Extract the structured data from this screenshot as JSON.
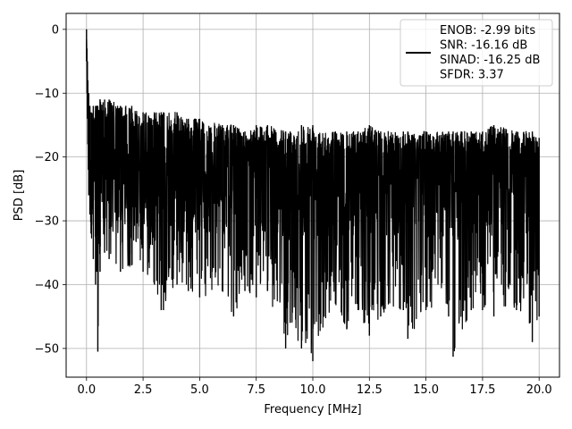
{
  "chart_data": {
    "type": "line",
    "xlabel": "Frequency [MHz]",
    "ylabel": "PSD [dB]",
    "xlim": [
      -0.9,
      20.9
    ],
    "ylim": [
      -54.5,
      2.5
    ],
    "xticks": [
      0.0,
      2.5,
      5.0,
      7.5,
      10.0,
      12.5,
      15.0,
      17.5,
      20.0
    ],
    "xtick_labels": [
      "0.0",
      "2.5",
      "5.0",
      "7.5",
      "10.0",
      "12.5",
      "15.0",
      "17.5",
      "20.0"
    ],
    "yticks": [
      0,
      -10,
      -20,
      -30,
      -40,
      -50
    ],
    "ytick_labels": [
      "0",
      "−10",
      "−20",
      "−30",
      "−40",
      "−50"
    ],
    "grid": true,
    "legend_position": "top-right",
    "line_color": "#000000",
    "legend_lines": [
      "ENOB: -2.99 bits",
      "SNR: -16.16 dB",
      "SINAD: -16.25 dB",
      "SFDR: 3.37"
    ],
    "series": [
      {
        "x": [
          0.0,
          0.02,
          0.04,
          0.06,
          0.08,
          0.1,
          0.15,
          0.2,
          0.3,
          0.4,
          0.45,
          0.5,
          0.6,
          0.8,
          1.0,
          1.5,
          2.0,
          2.5,
          3.0,
          3.3,
          3.4,
          4.0,
          4.5,
          5.0,
          6.0,
          6.5,
          7.0,
          7.5,
          8.0,
          8.8,
          9.0,
          9.5,
          10.0,
          11.0,
          11.5,
          12.0,
          12.5,
          13.0,
          14.0,
          14.2,
          15.0,
          16.0,
          16.2,
          17.0,
          17.5,
          18.0,
          19.0,
          19.7,
          20.0
        ],
        "peak": [
          0,
          -3,
          -5,
          -8,
          -10,
          -10,
          -12,
          -13,
          -12,
          -12,
          -12,
          -12,
          -11,
          -11,
          -11,
          -12,
          -12,
          -13,
          -13,
          -13,
          -13,
          -13,
          -14,
          -14,
          -15,
          -15,
          -16,
          -15,
          -15,
          -16,
          -16,
          -15,
          -15,
          -16,
          -16,
          -16,
          -15,
          -16,
          -16,
          -16,
          -16,
          -16,
          -16,
          -16,
          -16,
          -15,
          -16,
          -16,
          -17
        ],
        "floor": [
          -5,
          -10,
          -14,
          -18,
          -22,
          -26,
          -29,
          -32,
          -36,
          -40,
          -38,
          -50.5,
          -38,
          -35,
          -36,
          -38,
          -37,
          -38,
          -40,
          -44,
          -44,
          -40,
          -41,
          -42,
          -41,
          -45,
          -41,
          -42,
          -41,
          -50,
          -46,
          -50,
          -52,
          -43,
          -47,
          -44,
          -48,
          -45,
          -44,
          -48.5,
          -44,
          -45,
          -51.3,
          -44,
          -44,
          -45,
          -44,
          -49,
          -45
        ],
        "typical": [
          -2,
          -6,
          -10,
          -14,
          -17,
          -19,
          -21,
          -22,
          -22,
          -23,
          -23,
          -24,
          -23,
          -23,
          -23,
          -24,
          -24,
          -24,
          -24,
          -25,
          -25,
          -24,
          -25,
          -25,
          -25,
          -26,
          -25,
          -25,
          -25,
          -26,
          -26,
          -26,
          -26,
          -26,
          -26,
          -26,
          -26,
          -26,
          -26,
          -26,
          -26,
          -26,
          -26,
          -26,
          -26,
          -26,
          -26,
          -26,
          -26
        ]
      }
    ]
  }
}
